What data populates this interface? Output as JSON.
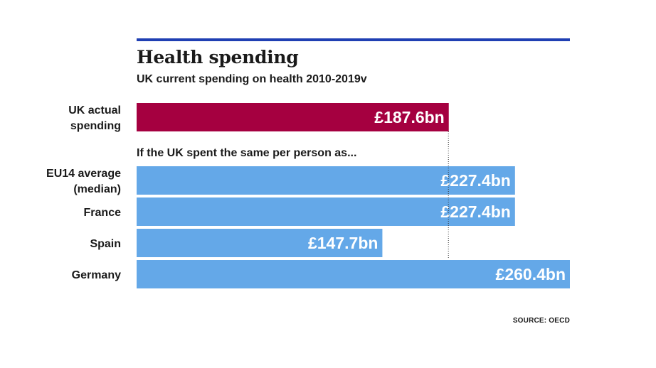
{
  "title": "Health spending",
  "subtitle": "UK current spending on health 2010-2019v",
  "note": "If the UK spent the same per person as...",
  "source": "SOURCE: OECD",
  "chart_data": {
    "type": "bar",
    "orientation": "horizontal",
    "title": "Health spending",
    "subtitle": "UK current spending on health 2010-2019v",
    "categories": [
      [
        "UK actual",
        "spending"
      ],
      [
        "EU14 average",
        "(median)"
      ],
      [
        "France"
      ],
      [
        "Spain"
      ],
      [
        "Germany"
      ]
    ],
    "values": [
      187.6,
      227.4,
      227.4,
      147.7,
      260.4
    ],
    "value_labels": [
      "£187.6bn",
      "£227.4bn",
      "£227.4bn",
      "£147.7bn",
      "£260.4bn"
    ],
    "unit": "£bn",
    "xlim": [
      0,
      260.4
    ],
    "colors": [
      "#a50040",
      "#64a8e8",
      "#64a8e8",
      "#64a8e8",
      "#64a8e8"
    ],
    "reference_line": 187.6,
    "grid": false,
    "legend": "none"
  }
}
